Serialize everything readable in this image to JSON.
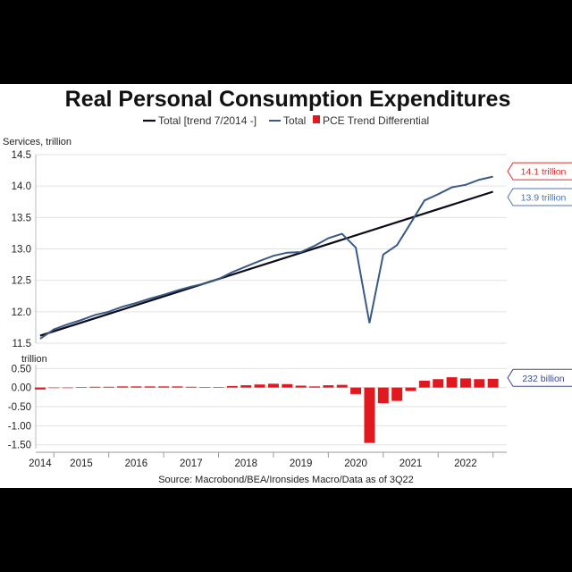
{
  "colors": {
    "total": "#3a5a85",
    "trend": "#0b0b1a",
    "differential": "#e0191f",
    "grid": "#e2e2e2",
    "callout_total": "#d9302f",
    "callout_trend": "#4a77b4",
    "callout_diff": "#3a4a8c"
  },
  "chart_data": [
    {
      "type": "line",
      "title": "Real Personal Consumption Expenditures",
      "ylabel": "Services, trillion",
      "ylim": [
        11.5,
        14.5
      ],
      "yticks": [
        "14.5",
        "14.0",
        "13.5",
        "13.0",
        "12.5",
        "12.0",
        "11.5"
      ],
      "ytick_values": [
        14.5,
        14.0,
        13.5,
        13.0,
        12.5,
        12.0,
        11.5
      ],
      "xlim": [
        2013.92,
        2022.5
      ],
      "grid": true,
      "legend_position": "top",
      "series": [
        {
          "name": "Total [trend 7/2014 -]",
          "x": [
            2014.0,
            2022.25
          ],
          "y": [
            11.62,
            13.91
          ]
        },
        {
          "name": "Total",
          "x": [
            2014.0,
            2014.25,
            2014.5,
            2014.75,
            2015.0,
            2015.25,
            2015.5,
            2015.75,
            2016.0,
            2016.25,
            2016.5,
            2016.75,
            2017.0,
            2017.25,
            2017.5,
            2017.75,
            2018.0,
            2018.25,
            2018.5,
            2018.75,
            2019.0,
            2019.25,
            2019.5,
            2019.75,
            2020.0,
            2020.25,
            2020.5,
            2020.75,
            2021.0,
            2021.25,
            2021.5,
            2021.75,
            2022.0,
            2022.25
          ],
          "y": [
            11.57,
            11.72,
            11.8,
            11.87,
            11.95,
            12.0,
            12.08,
            12.14,
            12.21,
            12.27,
            12.34,
            12.4,
            12.45,
            12.52,
            12.63,
            12.72,
            12.81,
            12.89,
            12.94,
            12.95,
            13.05,
            13.17,
            13.24,
            13.02,
            11.82,
            12.91,
            13.06,
            13.41,
            13.77,
            13.87,
            13.98,
            14.02,
            14.1,
            14.15
          ]
        }
      ],
      "callouts": [
        {
          "label": "14.1 trillion",
          "value": 14.15,
          "series": "Total"
        },
        {
          "label": "13.9 trillion",
          "value": 13.91,
          "series": "Total [trend 7/2014 -]"
        }
      ]
    },
    {
      "type": "bar",
      "ylabel": "trillion",
      "ylim": [
        -1.6,
        0.6
      ],
      "yticks": [
        "0.50",
        "0.00",
        "-0.50",
        "-1.00",
        "-1.50"
      ],
      "ytick_values": [
        0.5,
        0.0,
        -0.5,
        -1.0,
        -1.5
      ],
      "xlim": [
        2013.92,
        2022.5
      ],
      "grid": true,
      "series": [
        {
          "name": "PCE Trend Differential",
          "x": [
            2014.0,
            2014.25,
            2014.5,
            2014.75,
            2015.0,
            2015.25,
            2015.5,
            2015.75,
            2016.0,
            2016.25,
            2016.5,
            2016.75,
            2017.0,
            2017.25,
            2017.5,
            2017.75,
            2018.0,
            2018.25,
            2018.5,
            2018.75,
            2019.0,
            2019.25,
            2019.5,
            2019.75,
            2020.0,
            2020.25,
            2020.5,
            2020.75,
            2021.0,
            2021.25,
            2021.5,
            2021.75,
            2022.0,
            2022.25
          ],
          "values": [
            -0.05,
            0.0,
            0.0,
            0.01,
            0.02,
            0.02,
            0.03,
            0.03,
            0.03,
            0.03,
            0.03,
            0.02,
            0.01,
            0.01,
            0.04,
            0.06,
            0.08,
            0.1,
            0.09,
            0.05,
            0.03,
            0.06,
            0.07,
            -0.17,
            -1.45,
            -0.41,
            -0.35,
            -0.09,
            0.18,
            0.22,
            0.27,
            0.24,
            0.22,
            0.23
          ]
        }
      ],
      "callouts": [
        {
          "label": "232 billion",
          "value": 0.23,
          "series": "PCE Trend Differential"
        }
      ]
    }
  ],
  "x_ticks": {
    "labels": [
      "2014",
      "2015",
      "2016",
      "2017",
      "2018",
      "2019",
      "2020",
      "2021",
      "2022"
    ],
    "centers": [
      2014.0,
      2014.75,
      2015.75,
      2016.75,
      2017.75,
      2018.75,
      2019.75,
      2020.75,
      2021.75
    ],
    "boundaries": [
      2014.25,
      2015.25,
      2016.25,
      2017.25,
      2018.25,
      2019.25,
      2020.25,
      2021.25,
      2022.25
    ]
  },
  "source": "Source: Macrobond/BEA/Ironsides Macro/Data as of 3Q22"
}
